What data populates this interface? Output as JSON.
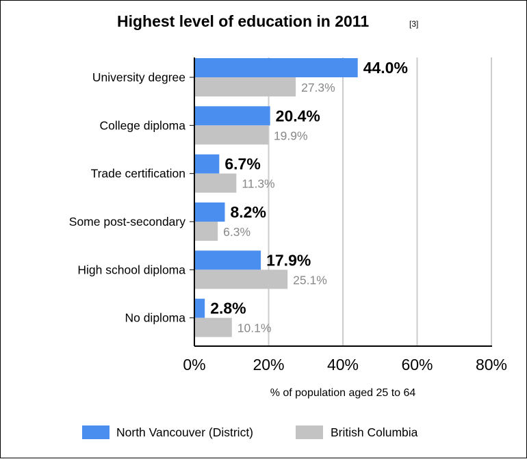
{
  "chart_data": {
    "type": "bar",
    "orientation": "horizontal",
    "title": "Highest level of education in 2011",
    "title_ref": "[3]",
    "categories": [
      "University degree",
      "College diploma",
      "Trade certification",
      "Some post-secondary",
      "High school diploma",
      "No diploma"
    ],
    "series": [
      {
        "name": "North Vancouver (District)",
        "color": "#4a8ff0",
        "values": [
          44.0,
          20.4,
          6.7,
          8.2,
          17.9,
          2.8
        ],
        "labels": [
          "44.0%",
          "20.4%",
          "6.7%",
          "8.2%",
          "17.9%",
          "2.8%"
        ]
      },
      {
        "name": "British Columbia",
        "color": "#c3c3c3",
        "values": [
          27.3,
          19.9,
          11.3,
          6.3,
          25.1,
          10.1
        ],
        "labels": [
          "27.3%",
          "19.9%",
          "11.3%",
          "6.3%",
          "25.1%",
          "10.1%"
        ]
      }
    ],
    "xlabel": "% of population aged 25 to 64",
    "xlim": [
      0,
      80
    ],
    "ticks": [
      0,
      20,
      40,
      60,
      80
    ],
    "tick_labels": [
      "0%",
      "20%",
      "40%",
      "60%",
      "80%"
    ],
    "grid": true,
    "legend_position": "bottom"
  }
}
